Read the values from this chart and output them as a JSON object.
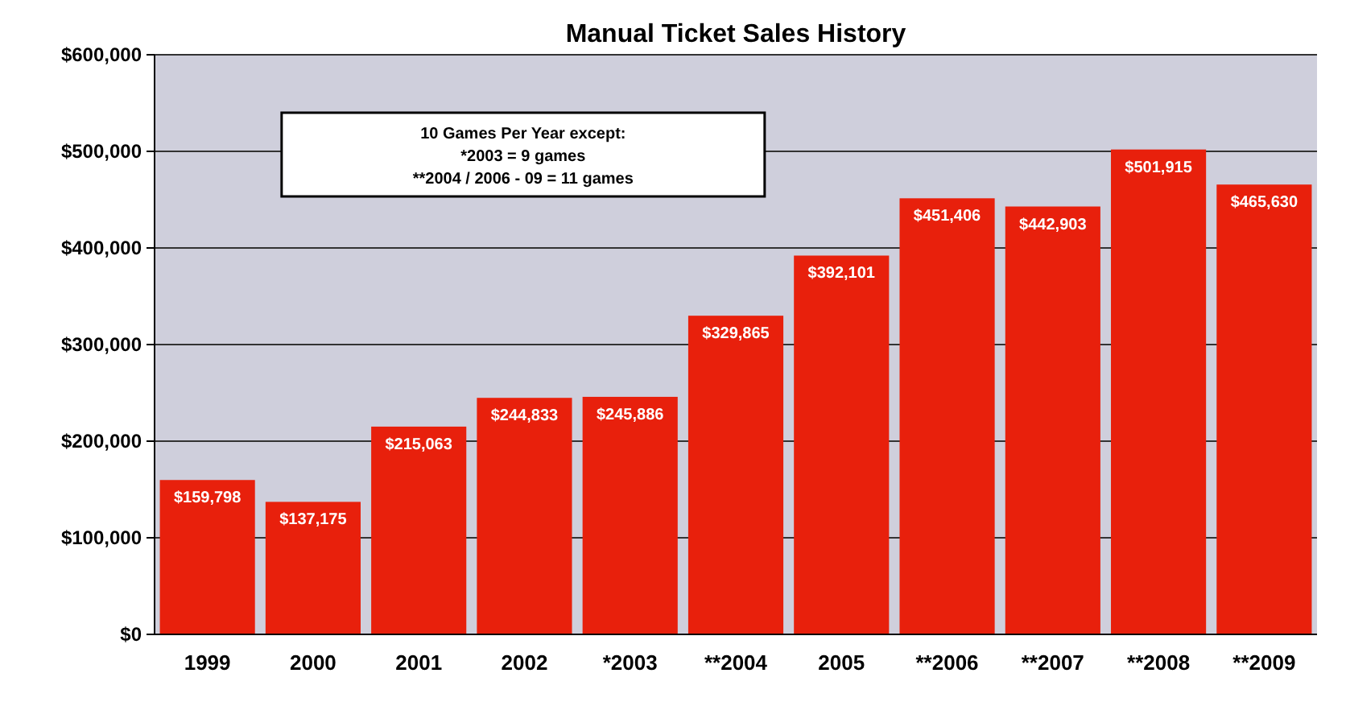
{
  "chart_data": {
    "type": "bar",
    "title": "Manual Ticket Sales History",
    "categories": [
      "1999",
      "2000",
      "2001",
      "2002",
      "*2003",
      "**2004",
      "2005",
      "**2006",
      "**2007",
      "**2008",
      "**2009"
    ],
    "values": [
      159798,
      137175,
      215063,
      244833,
      245886,
      329865,
      392101,
      451406,
      442903,
      501915,
      465630
    ],
    "value_labels": [
      "$159,798",
      "$137,175",
      "$215,063",
      "$244,833",
      "$245,886",
      "$329,865",
      "$392,101",
      "$451,406",
      "$442,903",
      "$501,915",
      "$465,630"
    ],
    "color": "#e8200c",
    "ylim": [
      0,
      600000
    ],
    "yticks": [
      {
        "value": 0,
        "label": "$0"
      },
      {
        "value": 100000,
        "label": "$100,000"
      },
      {
        "value": 200000,
        "label": "$200,000"
      },
      {
        "value": 300000,
        "label": "$300,000"
      },
      {
        "value": 400000,
        "label": "$400,000"
      },
      {
        "value": 500000,
        "label": "$500,000"
      },
      {
        "value": 600000,
        "label": "$600,000"
      }
    ],
    "grid": "y",
    "annotations": [
      "10 Games Per Year except:",
      "*2003 = 9 games",
      "**2004 / 2006 - 09 = 11 games"
    ]
  }
}
